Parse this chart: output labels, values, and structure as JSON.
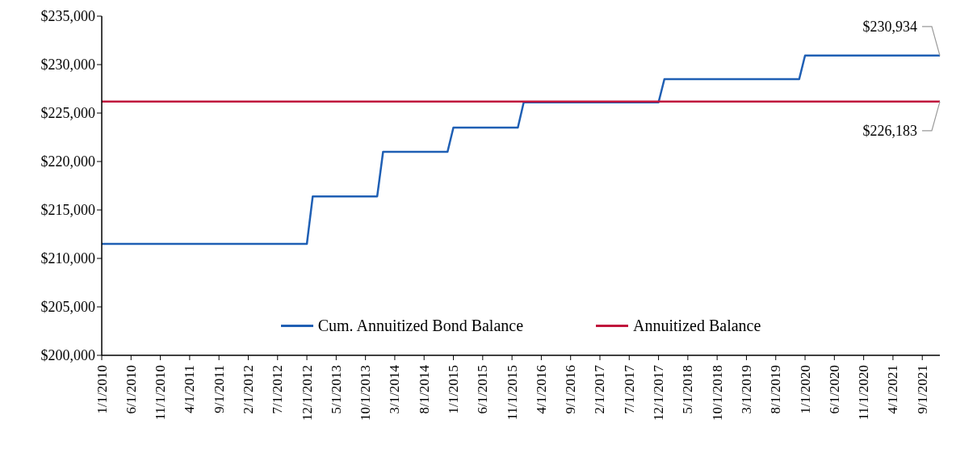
{
  "chart_data": {
    "type": "line",
    "categories": [
      "1/1/2010",
      null,
      null,
      null,
      null,
      "6/1/2010",
      null,
      null,
      null,
      null,
      "11/1/2010",
      null,
      null,
      null,
      null,
      "4/1/2011",
      null,
      null,
      null,
      null,
      "9/1/2011",
      null,
      null,
      null,
      null,
      "2/1/2012",
      null,
      null,
      null,
      null,
      "7/1/2012",
      null,
      null,
      null,
      null,
      "12/1/2012",
      null,
      null,
      null,
      null,
      "5/1/2013",
      null,
      null,
      null,
      null,
      "10/1/2013",
      null,
      null,
      null,
      null,
      "3/1/2014",
      null,
      null,
      null,
      null,
      "8/1/2014",
      null,
      null,
      null,
      null,
      "1/1/2015",
      null,
      null,
      null,
      null,
      "6/1/2015",
      null,
      null,
      null,
      null,
      "11/1/2015",
      null,
      null,
      null,
      null,
      "4/1/2016",
      null,
      null,
      null,
      null,
      "9/1/2016",
      null,
      null,
      null,
      null,
      "2/1/2017",
      null,
      null,
      null,
      null,
      "7/1/2017",
      null,
      null,
      null,
      null,
      "12/1/2017",
      null,
      null,
      null,
      null,
      "5/1/2018",
      null,
      null,
      null,
      null,
      "10/1/2018",
      null,
      null,
      null,
      null,
      "3/1/2019",
      null,
      null,
      null,
      null,
      "8/1/2019",
      null,
      null,
      null,
      null,
      "1/1/2020",
      null,
      null,
      null,
      null,
      "6/1/2020",
      null,
      null,
      null,
      null,
      "11/1/2020",
      null,
      null,
      null,
      null,
      "4/1/2021",
      null,
      null,
      null,
      null,
      "9/1/2021",
      null,
      null,
      null
    ],
    "series": [
      {
        "name": "Cum. Annuitized Bond Balance",
        "color": "#1f5fb4",
        "values": [
          211500,
          211500,
          211500,
          211500,
          211500,
          211500,
          211500,
          211500,
          211500,
          211500,
          211500,
          211500,
          211500,
          211500,
          211500,
          211500,
          211500,
          211500,
          211500,
          211500,
          211500,
          211500,
          211500,
          211500,
          211500,
          211500,
          211500,
          211500,
          211500,
          211500,
          211500,
          211500,
          211500,
          211500,
          211500,
          211500,
          216400,
          216400,
          216400,
          216400,
          216400,
          216400,
          216400,
          216400,
          216400,
          216400,
          216400,
          216400,
          221000,
          221000,
          221000,
          221000,
          221000,
          221000,
          221000,
          221000,
          221000,
          221000,
          221000,
          221000,
          223500,
          223500,
          223500,
          223500,
          223500,
          223500,
          223500,
          223500,
          223500,
          223500,
          223500,
          223500,
          226100,
          226100,
          226100,
          226100,
          226100,
          226100,
          226100,
          226100,
          226100,
          226100,
          226100,
          226100,
          226100,
          226100,
          226100,
          226100,
          226100,
          226100,
          226100,
          226100,
          226100,
          226100,
          226100,
          226100,
          228500,
          228500,
          228500,
          228500,
          228500,
          228500,
          228500,
          228500,
          228500,
          228500,
          228500,
          228500,
          228500,
          228500,
          228500,
          228500,
          228500,
          228500,
          228500,
          228500,
          228500,
          228500,
          228500,
          228500,
          230934,
          230934,
          230934,
          230934,
          230934,
          230934,
          230934,
          230934,
          230934,
          230934,
          230934,
          230934,
          230934,
          230934,
          230934,
          230934,
          230934,
          230934,
          230934,
          230934,
          230934,
          230934,
          230934,
          230934
        ],
        "value_labels": [
          null,
          null,
          null,
          null,
          null,
          null,
          null,
          null,
          null,
          null,
          null,
          null,
          null,
          null,
          null,
          null,
          null,
          null,
          null,
          null,
          null,
          null,
          null,
          null,
          null,
          null,
          null,
          null,
          null,
          null,
          null,
          null,
          null,
          null,
          null,
          null,
          null,
          null,
          null,
          null,
          null,
          null,
          null,
          null,
          null,
          null,
          null,
          null,
          null,
          null,
          null,
          null,
          null,
          null,
          null,
          null,
          null,
          null,
          null,
          null,
          null,
          null,
          null,
          null,
          null,
          null,
          null,
          null,
          null,
          null,
          null,
          null,
          null,
          null,
          null,
          null,
          null,
          null,
          null,
          null,
          null,
          null,
          null,
          null,
          null,
          null,
          null,
          null,
          null,
          null,
          null,
          null,
          null,
          null,
          null,
          null,
          null,
          null,
          null,
          null,
          null,
          null,
          null,
          null,
          null,
          null,
          null,
          null,
          null,
          null,
          null,
          null,
          null,
          null,
          null,
          null,
          null,
          null,
          null,
          null,
          null,
          null,
          null,
          null,
          null,
          null,
          null,
          null,
          null,
          null,
          null,
          null,
          null,
          null,
          null,
          null,
          null,
          null,
          null,
          null,
          null,
          null,
          null,
          "$230,934"
        ]
      },
      {
        "name": "Annuitized Balance",
        "color": "#c0143c",
        "values": [
          226183,
          226183,
          226183,
          226183,
          226183,
          226183,
          226183,
          226183,
          226183,
          226183,
          226183,
          226183,
          226183,
          226183,
          226183,
          226183,
          226183,
          226183,
          226183,
          226183,
          226183,
          226183,
          226183,
          226183,
          226183,
          226183,
          226183,
          226183,
          226183,
          226183,
          226183,
          226183,
          226183,
          226183,
          226183,
          226183,
          226183,
          226183,
          226183,
          226183,
          226183,
          226183,
          226183,
          226183,
          226183,
          226183,
          226183,
          226183,
          226183,
          226183,
          226183,
          226183,
          226183,
          226183,
          226183,
          226183,
          226183,
          226183,
          226183,
          226183,
          226183,
          226183,
          226183,
          226183,
          226183,
          226183,
          226183,
          226183,
          226183,
          226183,
          226183,
          226183,
          226183,
          226183,
          226183,
          226183,
          226183,
          226183,
          226183,
          226183,
          226183,
          226183,
          226183,
          226183,
          226183,
          226183,
          226183,
          226183,
          226183,
          226183,
          226183,
          226183,
          226183,
          226183,
          226183,
          226183,
          226183,
          226183,
          226183,
          226183,
          226183,
          226183,
          226183,
          226183,
          226183,
          226183,
          226183,
          226183,
          226183,
          226183,
          226183,
          226183,
          226183,
          226183,
          226183,
          226183,
          226183,
          226183,
          226183,
          226183,
          226183,
          226183,
          226183,
          226183,
          226183,
          226183,
          226183,
          226183,
          226183,
          226183,
          226183,
          226183,
          226183,
          226183,
          226183,
          226183,
          226183,
          226183,
          226183,
          226183,
          226183,
          226183,
          226183,
          226183
        ],
        "value_labels": [
          null,
          null,
          null,
          null,
          null,
          null,
          null,
          null,
          null,
          null,
          null,
          null,
          null,
          null,
          null,
          null,
          null,
          null,
          null,
          null,
          null,
          null,
          null,
          null,
          null,
          null,
          null,
          null,
          null,
          null,
          null,
          null,
          null,
          null,
          null,
          null,
          null,
          null,
          null,
          null,
          null,
          null,
          null,
          null,
          null,
          null,
          null,
          null,
          null,
          null,
          null,
          null,
          null,
          null,
          null,
          null,
          null,
          null,
          null,
          null,
          null,
          null,
          null,
          null,
          null,
          null,
          null,
          null,
          null,
          null,
          null,
          null,
          null,
          null,
          null,
          null,
          null,
          null,
          null,
          null,
          null,
          null,
          null,
          null,
          null,
          null,
          null,
          null,
          null,
          null,
          null,
          null,
          null,
          null,
          null,
          null,
          null,
          null,
          null,
          null,
          null,
          null,
          null,
          null,
          null,
          null,
          null,
          null,
          null,
          null,
          null,
          null,
          null,
          null,
          null,
          null,
          null,
          null,
          null,
          null,
          null,
          null,
          null,
          null,
          null,
          null,
          null,
          null,
          null,
          null,
          null,
          null,
          null,
          null,
          null,
          null,
          null,
          null,
          null,
          null,
          null,
          null,
          null,
          "$226,183"
        ]
      }
    ],
    "ylim": [
      200000,
      235000
    ],
    "yticks": [
      {
        "value": 200000,
        "label": "$200,000"
      },
      {
        "value": 205000,
        "label": "$205,000"
      },
      {
        "value": 210000,
        "label": "$210,000"
      },
      {
        "value": 215000,
        "label": "$215,000"
      },
      {
        "value": 220000,
        "label": "$220,000"
      },
      {
        "value": 225000,
        "label": "$225,000"
      },
      {
        "value": 230000,
        "label": "$230,000"
      },
      {
        "value": 235000,
        "label": "$235,000"
      }
    ],
    "grid": false,
    "legend": "bottom",
    "marker": "none",
    "line_style": "solid"
  }
}
